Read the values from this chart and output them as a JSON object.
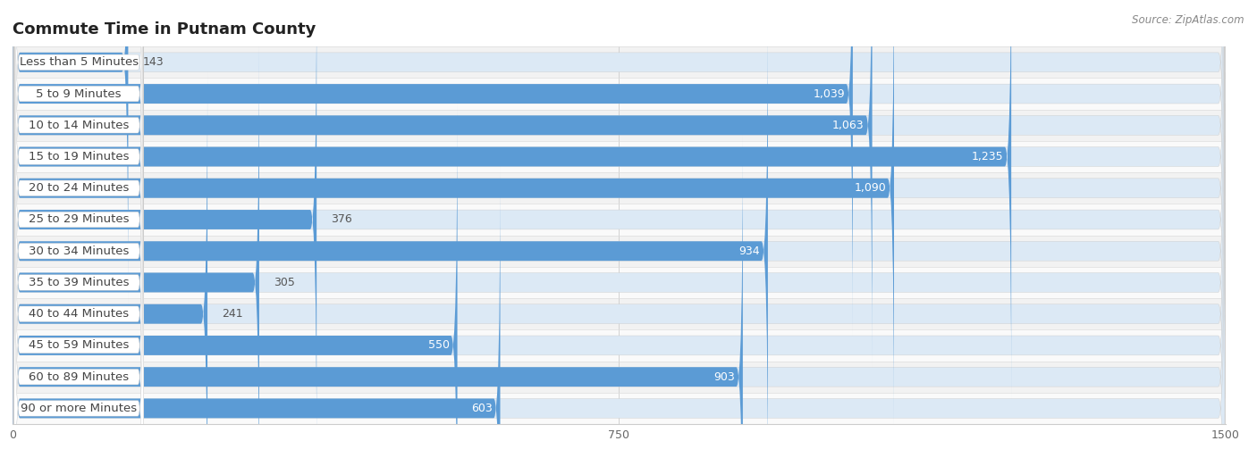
{
  "title": "Commute Time in Putnam County",
  "source": "Source: ZipAtlas.com",
  "categories": [
    "Less than 5 Minutes",
    "5 to 9 Minutes",
    "10 to 14 Minutes",
    "15 to 19 Minutes",
    "20 to 24 Minutes",
    "25 to 29 Minutes",
    "30 to 34 Minutes",
    "35 to 39 Minutes",
    "40 to 44 Minutes",
    "45 to 59 Minutes",
    "60 to 89 Minutes",
    "90 or more Minutes"
  ],
  "values": [
    143,
    1039,
    1063,
    1235,
    1090,
    376,
    934,
    305,
    241,
    550,
    903,
    603
  ],
  "bar_color": "#5b9bd5",
  "track_color": "#dce9f5",
  "row_color_light": "#f2f2f2",
  "row_color_white": "#fafafa",
  "label_bg": "#ffffff",
  "label_fg": "#444444",
  "value_color_inside": "#ffffff",
  "value_color_outside": "#555555",
  "xlim_min": 0,
  "xlim_max": 1500,
  "xticks": [
    0,
    750,
    1500
  ],
  "title_fontsize": 13,
  "label_fontsize": 9.5,
  "value_fontsize": 9,
  "tick_fontsize": 9,
  "source_fontsize": 8.5
}
